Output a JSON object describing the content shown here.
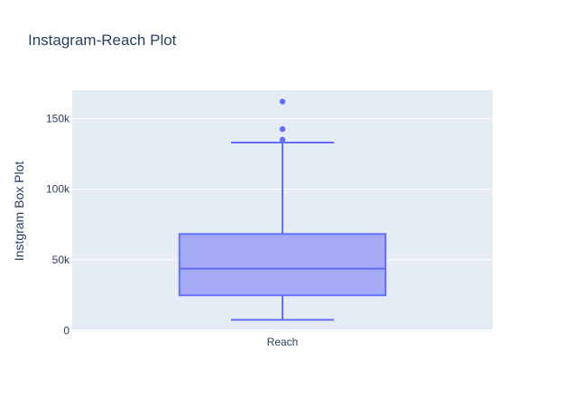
{
  "chart_data": {
    "type": "box",
    "title": "Instagram-Reach Plot",
    "ylabel": "Instgram Box Plot",
    "xlabel": "",
    "categories": [
      "Reach"
    ],
    "ylim": [
      -1000,
      170000
    ],
    "yticks": [
      {
        "value": 0,
        "label": "0"
      },
      {
        "value": 50000,
        "label": "50k"
      },
      {
        "value": 100000,
        "label": "100k"
      },
      {
        "value": 150000,
        "label": "150k"
      }
    ],
    "series": [
      {
        "category": "Reach",
        "lower_fence": 7600,
        "q1": 25000,
        "median": 43800,
        "q3": 68300,
        "upper_fence": 133000,
        "outliers": [
          135000,
          142500,
          162000
        ]
      }
    ],
    "colors": {
      "box_line": "#636efa",
      "box_fill": "#a5abf7",
      "plot_bg": "#e5ecf6",
      "grid": "#ffffff"
    },
    "grid": true
  }
}
